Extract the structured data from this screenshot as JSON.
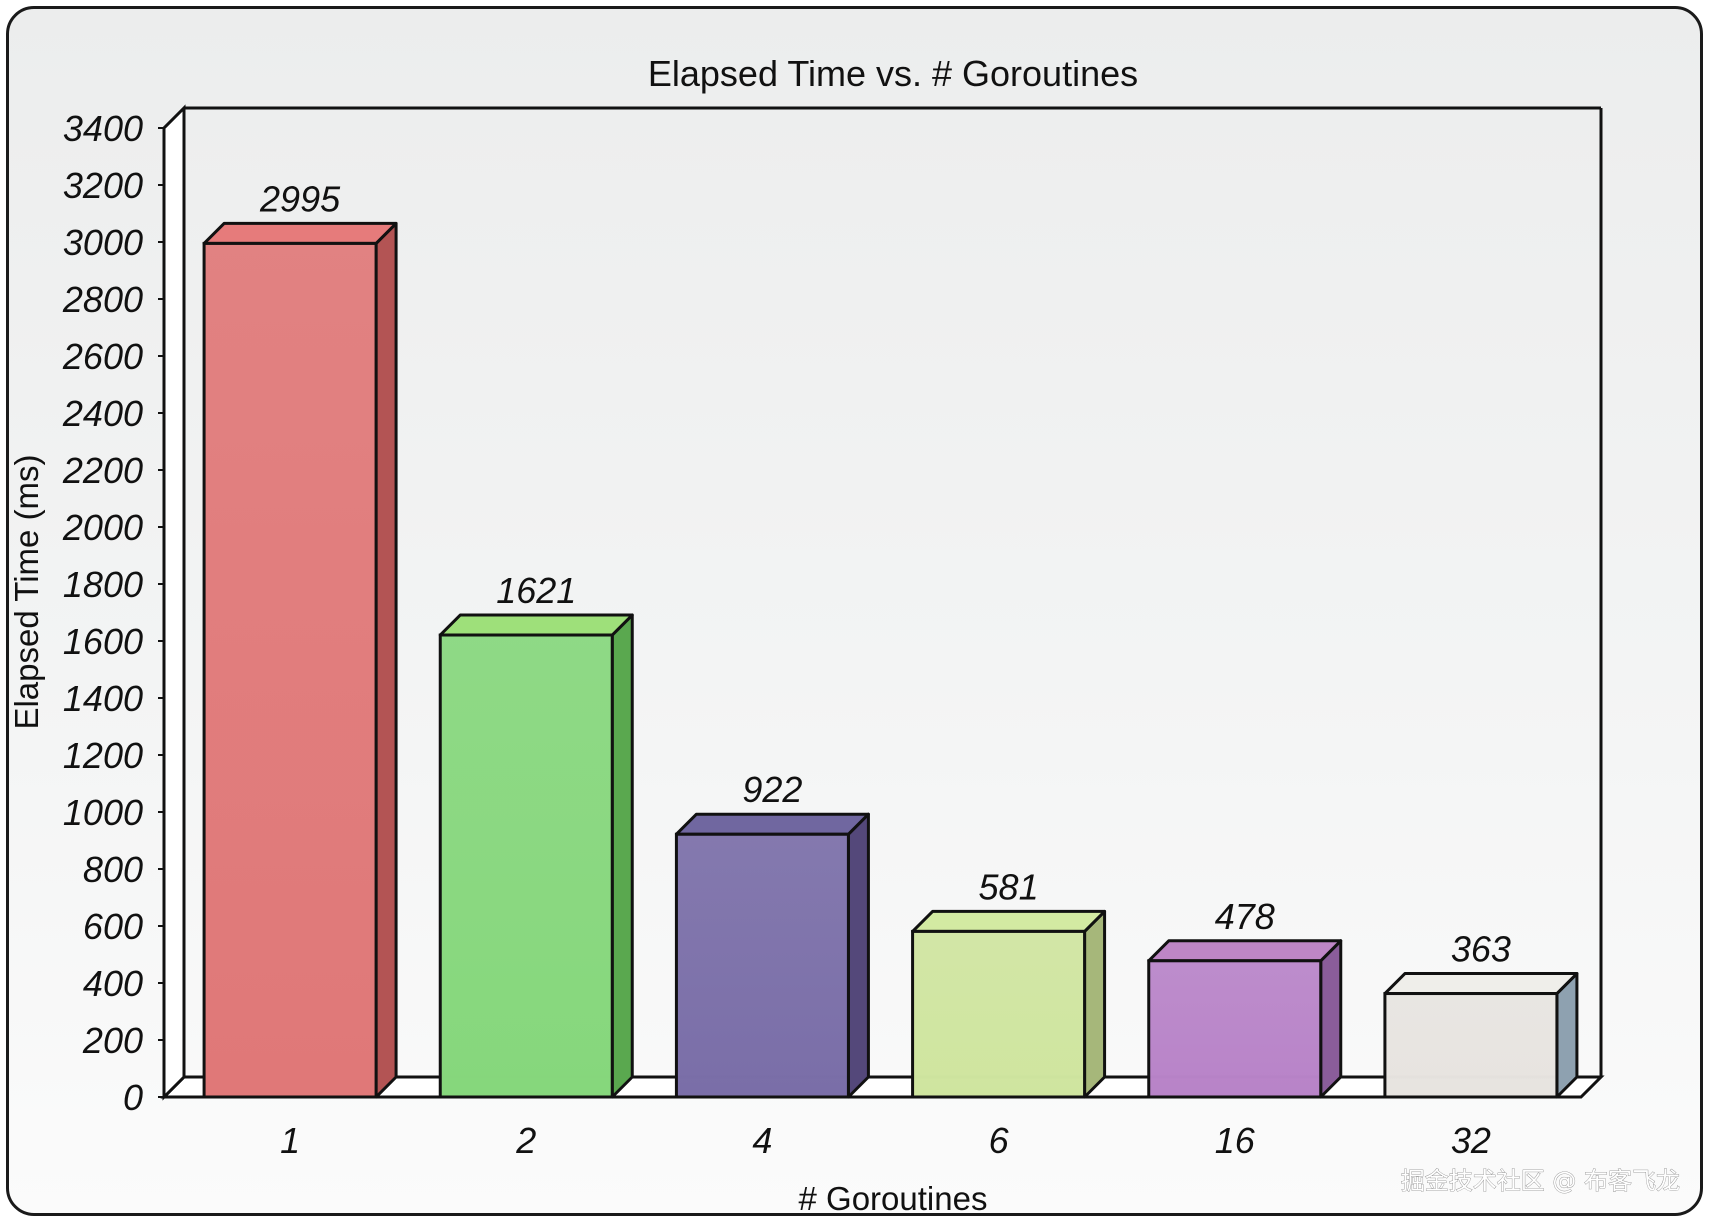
{
  "chart_data": {
    "type": "bar",
    "title": "Elapsed Time vs. # Goroutines",
    "xlabel": "# Goroutines",
    "ylabel": "Elapsed Time (ms)",
    "categories": [
      "1",
      "2",
      "4",
      "6",
      "16",
      "32"
    ],
    "values": [
      2995,
      1621,
      922,
      581,
      478,
      363
    ],
    "data_labels": [
      "2995",
      "1621",
      "922",
      "581",
      "478",
      "363"
    ],
    "ylim": [
      0,
      3400
    ],
    "yticks": [
      0,
      200,
      400,
      600,
      800,
      1000,
      1200,
      1400,
      1600,
      1800,
      2000,
      2200,
      2400,
      2600,
      2800,
      3000,
      3200,
      3400
    ],
    "grid": false,
    "style": "3d-bar",
    "bar_colors": [
      {
        "front": "#e07878",
        "side": "#b35454",
        "top": "#e67b7b"
      },
      {
        "front": "#86d77c",
        "side": "#5aa84f",
        "top": "#9ee07a"
      },
      {
        "front": "#7a6ea8",
        "side": "#54487a",
        "top": "#7067a0"
      },
      {
        "front": "#cfe59f",
        "side": "#a6b77a",
        "top": "#d3eaa2"
      },
      {
        "front": "#b883c8",
        "side": "#8a5d9a",
        "top": "#be86c6"
      },
      {
        "front": "#e7e4e0",
        "side": "#8ea1b0",
        "top": "#efeeea"
      }
    ]
  },
  "watermark": "掘金技术社区 @ 布客飞龙"
}
